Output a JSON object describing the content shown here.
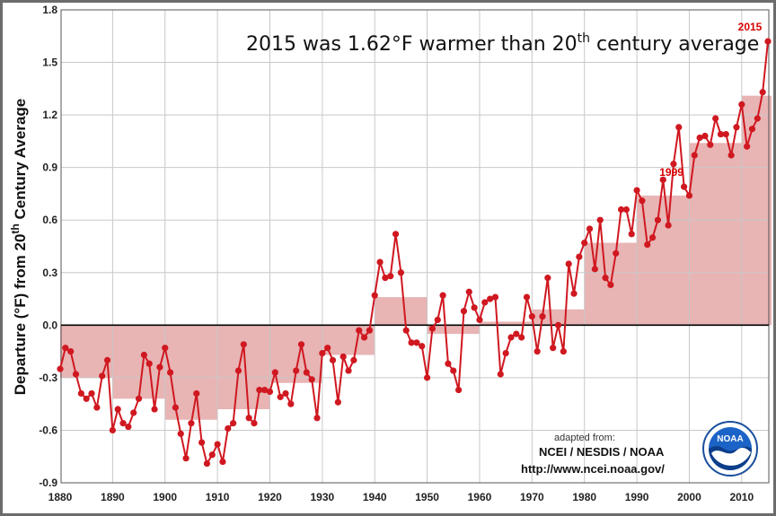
{
  "chart_data": {
    "type": "line",
    "title_main": "2015 was 1.62°F warmer than 20",
    "title_sup": "th",
    "title_end": " century average",
    "ylabel_main": "Departure (°F) from 20",
    "ylabel_sup": "th",
    "ylabel_end": " Century Average",
    "xlim": [
      1880,
      2015
    ],
    "ylim": [
      -0.9,
      1.8
    ],
    "xticks": [
      1880,
      1890,
      1900,
      1910,
      1920,
      1930,
      1940,
      1950,
      1960,
      1970,
      1980,
      1990,
      2000,
      2010
    ],
    "yticks": [
      "-0.9",
      "-0.6",
      "-0.3",
      "0.0",
      "0.3",
      "0.6",
      "0.9",
      "1.2",
      "1.5",
      "1.8"
    ],
    "grid": true,
    "line_color": "#d01820",
    "bar_color": "#e8b4b4",
    "annotations": [
      {
        "year": 1999,
        "text": "1999"
      },
      {
        "year": 2015,
        "text": "2015"
      }
    ],
    "years": [
      1880,
      1881,
      1882,
      1883,
      1884,
      1885,
      1886,
      1887,
      1888,
      1889,
      1890,
      1891,
      1892,
      1893,
      1894,
      1895,
      1896,
      1897,
      1898,
      1899,
      1900,
      1901,
      1902,
      1903,
      1904,
      1905,
      1906,
      1907,
      1908,
      1909,
      1910,
      1911,
      1912,
      1913,
      1914,
      1915,
      1916,
      1917,
      1918,
      1919,
      1920,
      1921,
      1922,
      1923,
      1924,
      1925,
      1926,
      1927,
      1928,
      1929,
      1930,
      1931,
      1932,
      1933,
      1934,
      1935,
      1936,
      1937,
      1938,
      1939,
      1940,
      1941,
      1942,
      1943,
      1944,
      1945,
      1946,
      1947,
      1948,
      1949,
      1950,
      1951,
      1952,
      1953,
      1954,
      1955,
      1956,
      1957,
      1958,
      1959,
      1960,
      1961,
      1962,
      1963,
      1964,
      1965,
      1966,
      1967,
      1968,
      1969,
      1970,
      1971,
      1972,
      1973,
      1974,
      1975,
      1976,
      1977,
      1978,
      1979,
      1980,
      1981,
      1982,
      1983,
      1984,
      1985,
      1986,
      1987,
      1988,
      1989,
      1990,
      1991,
      1992,
      1993,
      1994,
      1995,
      1996,
      1997,
      1998,
      1999,
      2000,
      2001,
      2002,
      2003,
      2004,
      2005,
      2006,
      2007,
      2008,
      2009,
      2010,
      2011,
      2012,
      2013,
      2014,
      2015
    ],
    "values": [
      -0.25,
      -0.13,
      -0.15,
      -0.28,
      -0.39,
      -0.42,
      -0.39,
      -0.47,
      -0.29,
      -0.2,
      -0.6,
      -0.48,
      -0.56,
      -0.58,
      -0.5,
      -0.42,
      -0.17,
      -0.22,
      -0.48,
      -0.24,
      -0.13,
      -0.27,
      -0.47,
      -0.62,
      -0.76,
      -0.56,
      -0.39,
      -0.67,
      -0.79,
      -0.74,
      -0.68,
      -0.78,
      -0.59,
      -0.56,
      -0.26,
      -0.11,
      -0.53,
      -0.56,
      -0.37,
      -0.37,
      -0.38,
      -0.27,
      -0.41,
      -0.39,
      -0.45,
      -0.26,
      -0.11,
      -0.27,
      -0.31,
      -0.53,
      -0.16,
      -0.13,
      -0.2,
      -0.44,
      -0.18,
      -0.26,
      -0.2,
      -0.03,
      -0.07,
      -0.03,
      0.17,
      0.36,
      0.27,
      0.28,
      0.52,
      0.3,
      -0.03,
      -0.1,
      -0.1,
      -0.12,
      -0.3,
      -0.02,
      0.03,
      0.17,
      -0.22,
      -0.26,
      -0.37,
      0.08,
      0.19,
      0.1,
      0.03,
      0.13,
      0.15,
      0.16,
      -0.28,
      -0.16,
      -0.07,
      -0.05,
      -0.07,
      0.16,
      0.05,
      -0.15,
      0.05,
      0.27,
      -0.13,
      0.0,
      -0.15,
      0.35,
      0.18,
      0.39,
      0.47,
      0.55,
      0.32,
      0.6,
      0.27,
      0.23,
      0.41,
      0.66,
      0.66,
      0.52,
      0.77,
      0.71,
      0.46,
      0.5,
      0.6,
      0.83,
      0.57,
      0.92,
      1.13,
      0.79,
      0.74,
      0.97,
      1.07,
      1.08,
      1.03,
      1.18,
      1.09,
      1.09,
      0.97,
      1.13,
      1.26,
      1.02,
      1.12,
      1.18,
      1.33,
      1.62
    ],
    "decadal_averages": [
      {
        "start": 1880,
        "end": 1890,
        "value": -0.3
      },
      {
        "start": 1890,
        "end": 1900,
        "value": -0.42
      },
      {
        "start": 1900,
        "end": 1910,
        "value": -0.54
      },
      {
        "start": 1910,
        "end": 1920,
        "value": -0.48
      },
      {
        "start": 1920,
        "end": 1930,
        "value": -0.33
      },
      {
        "start": 1930,
        "end": 1940,
        "value": -0.17
      },
      {
        "start": 1940,
        "end": 1950,
        "value": 0.16
      },
      {
        "start": 1950,
        "end": 1960,
        "value": -0.05
      },
      {
        "start": 1960,
        "end": 1970,
        "value": 0.02
      },
      {
        "start": 1970,
        "end": 1980,
        "value": 0.09
      },
      {
        "start": 1980,
        "end": 1990,
        "value": 0.47
      },
      {
        "start": 1990,
        "end": 2000,
        "value": 0.74
      },
      {
        "start": 2000,
        "end": 2010,
        "value": 1.04
      },
      {
        "start": 2010,
        "end": 2015,
        "value": 1.31
      }
    ]
  },
  "credit": {
    "adapted": "adapted from:",
    "agency": "NCEI / NESDIS / NOAA",
    "url": "http://www.ncei.noaa.gov/",
    "logo_text": "NOAA"
  }
}
